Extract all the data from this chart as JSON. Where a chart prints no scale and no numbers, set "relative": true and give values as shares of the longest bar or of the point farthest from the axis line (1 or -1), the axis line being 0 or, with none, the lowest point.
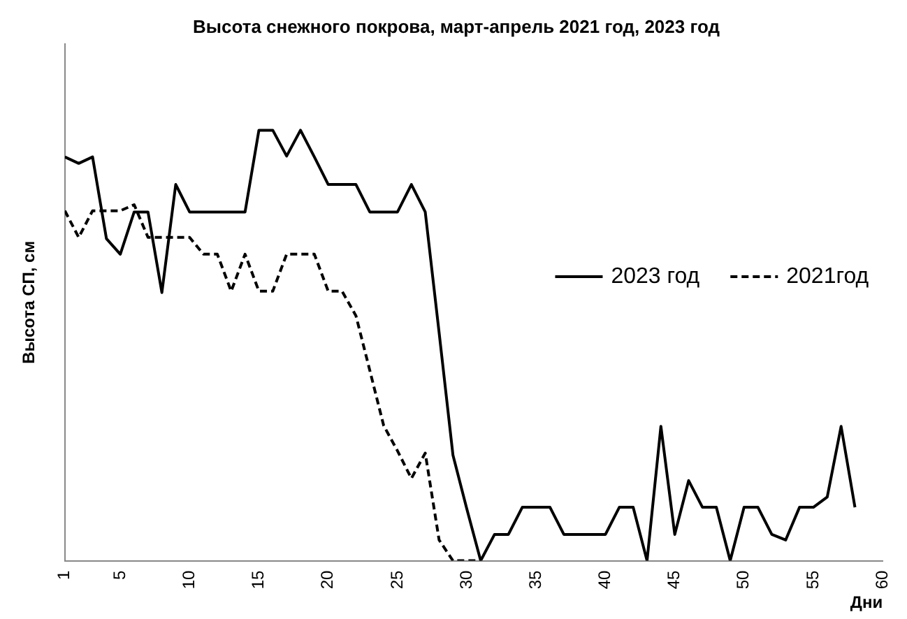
{
  "chart_data": {
    "type": "line",
    "title": "Высота снежного покрова, март-апрель 2021 год, 2023 год",
    "xlabel": "Дни",
    "ylabel": "Высота СП, см",
    "relative": true,
    "xlim": [
      1,
      60
    ],
    "xticks": [
      1,
      5,
      10,
      15,
      20,
      25,
      30,
      35,
      40,
      45,
      50,
      55,
      60
    ],
    "legend": "right",
    "grid": false,
    "marker": "none",
    "series": [
      {
        "name": "2023 год",
        "color": "#000000",
        "line_style": "solid",
        "x": [
          1,
          2,
          3,
          4,
          5,
          6,
          7,
          8,
          9,
          10,
          11,
          12,
          13,
          14,
          15,
          16,
          17,
          18,
          19,
          20,
          21,
          22,
          23,
          24,
          25,
          26,
          27,
          28,
          29,
          30,
          31,
          32,
          33,
          34,
          35,
          36,
          37,
          38,
          39,
          40,
          41,
          42,
          43,
          44,
          45,
          46,
          47,
          48,
          49,
          50,
          51,
          52,
          53,
          54,
          55,
          56,
          57,
          58
        ],
        "values": [
          0.938,
          0.923,
          0.938,
          0.748,
          0.712,
          0.81,
          0.81,
          0.623,
          0.874,
          0.81,
          0.81,
          0.81,
          0.81,
          0.81,
          1,
          1,
          0.94,
          1,
          0.938,
          0.874,
          0.874,
          0.874,
          0.81,
          0.81,
          0.81,
          0.874,
          0.81,
          0.53,
          0.245,
          0.12,
          0,
          0.061,
          0.061,
          0.124,
          0.124,
          0.124,
          0.061,
          0.061,
          0.061,
          0.061,
          0.124,
          0.124,
          0,
          0.312,
          0.061,
          0.186,
          0.124,
          0.124,
          0,
          0.124,
          0.124,
          0.061,
          0.048,
          0.124,
          0.124,
          0.148,
          0.312,
          0.124
        ]
      },
      {
        "name": "2021год",
        "color": "#000000",
        "line_style": "dashed",
        "x": [
          1,
          2,
          3,
          4,
          5,
          6,
          7,
          8,
          9,
          10,
          11,
          12,
          13,
          14,
          15,
          16,
          17,
          18,
          19,
          20,
          21,
          22,
          23,
          24,
          25,
          26,
          27,
          28,
          29,
          30,
          31
        ],
        "values": [
          0.813,
          0.751,
          0.813,
          0.813,
          0.813,
          0.827,
          0.751,
          0.751,
          0.751,
          0.751,
          0.712,
          0.712,
          0.626,
          0.712,
          0.626,
          0.626,
          0.712,
          0.712,
          0.712,
          0.626,
          0.626,
          0.569,
          0.442,
          0.314,
          0.255,
          0.191,
          0.25,
          0.048,
          0,
          0,
          0
        ]
      }
    ]
  }
}
